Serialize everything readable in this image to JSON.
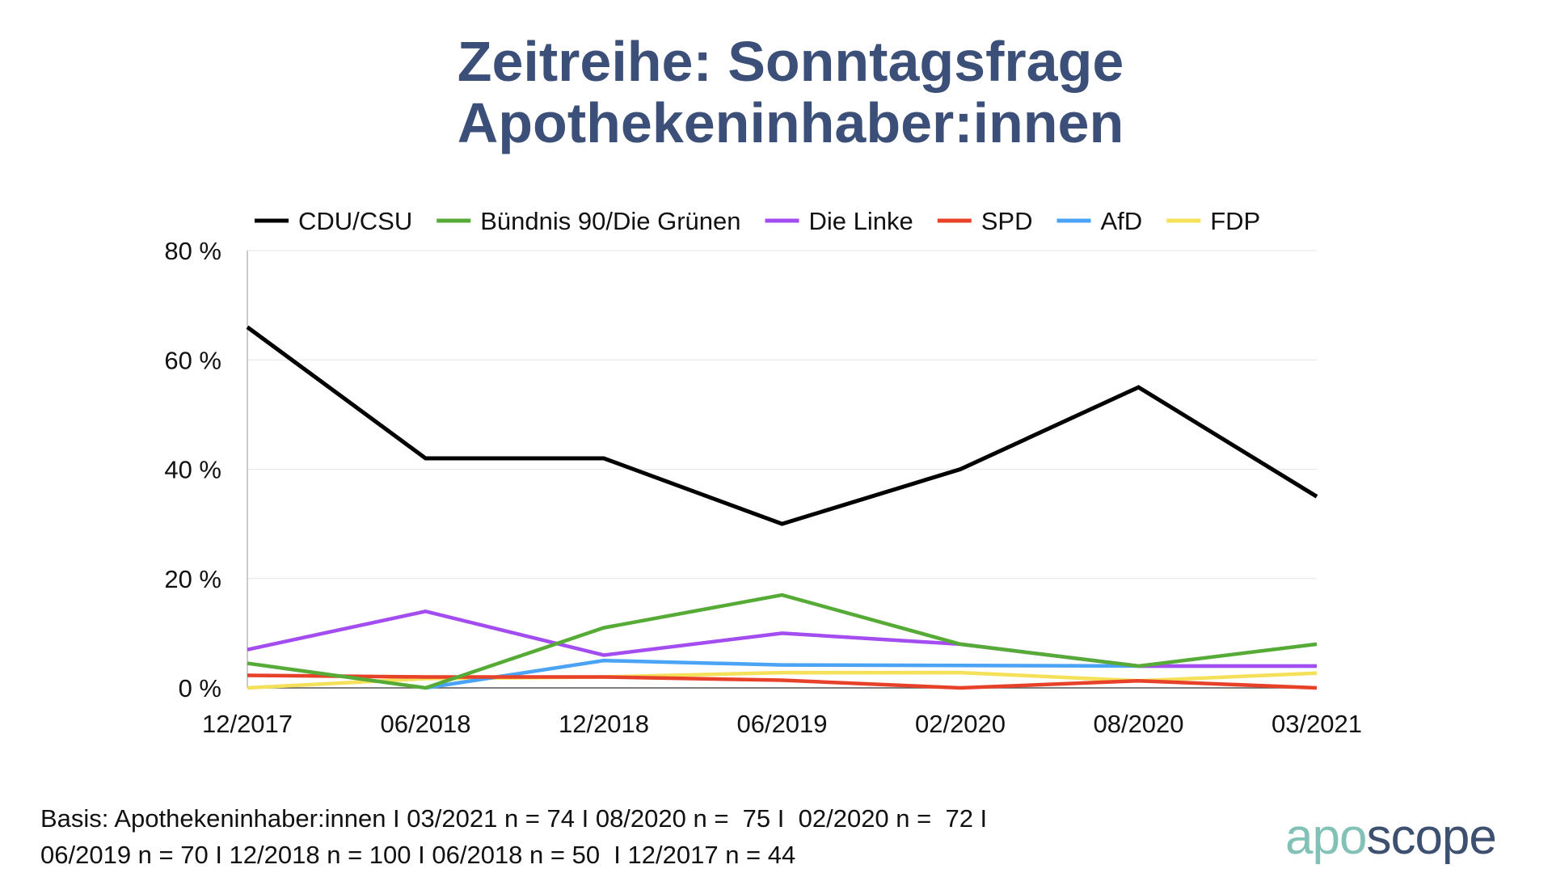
{
  "title_line1": "Zeitreihe: Sonntagsfrage",
  "title_line2": "Apothekeninhaber:innen",
  "chart_data": {
    "type": "line",
    "categories": [
      "12/2017",
      "06/2018",
      "12/2018",
      "06/2019",
      "02/2020",
      "08/2020",
      "03/2021"
    ],
    "ylim": [
      0,
      80
    ],
    "yticks": [
      0,
      20,
      40,
      60,
      80
    ],
    "ytick_labels": [
      "0 %",
      "20 %",
      "40 %",
      "60 %",
      "80 %"
    ],
    "grid": true,
    "legend_position": "top",
    "series": [
      {
        "name": "CDU/CSU",
        "color": "#000000",
        "values": [
          66,
          42,
          42,
          30,
          40,
          55,
          35
        ]
      },
      {
        "name": "Bündnis 90/Die Grünen",
        "color": "#56ab37",
        "values": [
          4.5,
          0,
          11,
          17,
          8,
          4,
          8
        ]
      },
      {
        "name": "Die Linke",
        "color": "#a34cf0",
        "values": [
          7,
          14,
          6,
          10,
          8,
          4,
          4
        ]
      },
      {
        "name": "SPD",
        "color": "#e8412a",
        "values": [
          2.3,
          2,
          2,
          1.4,
          0,
          1.3,
          0
        ]
      },
      {
        "name": "AfD",
        "color": "#4aa3f5",
        "values": [
          null,
          0,
          5,
          4.2,
          4.1,
          4,
          4
        ]
      },
      {
        "name": "FDP",
        "color": "#f5e05a",
        "values": [
          0,
          1.7,
          2,
          2.8,
          2.8,
          1.3,
          2.7
        ]
      }
    ]
  },
  "footer_line1": "Basis: Apothekeninhaber:innen I 03/2021 n = 74 I 08/2020 n =  75 I  02/2020 n =  72 I",
  "footer_line2": "06/2019 n = 70 I 12/2018 n = 100 I 06/2018 n = 50  I 12/2017 n = 44",
  "logo": {
    "part1": "apo",
    "part2": "scope"
  }
}
